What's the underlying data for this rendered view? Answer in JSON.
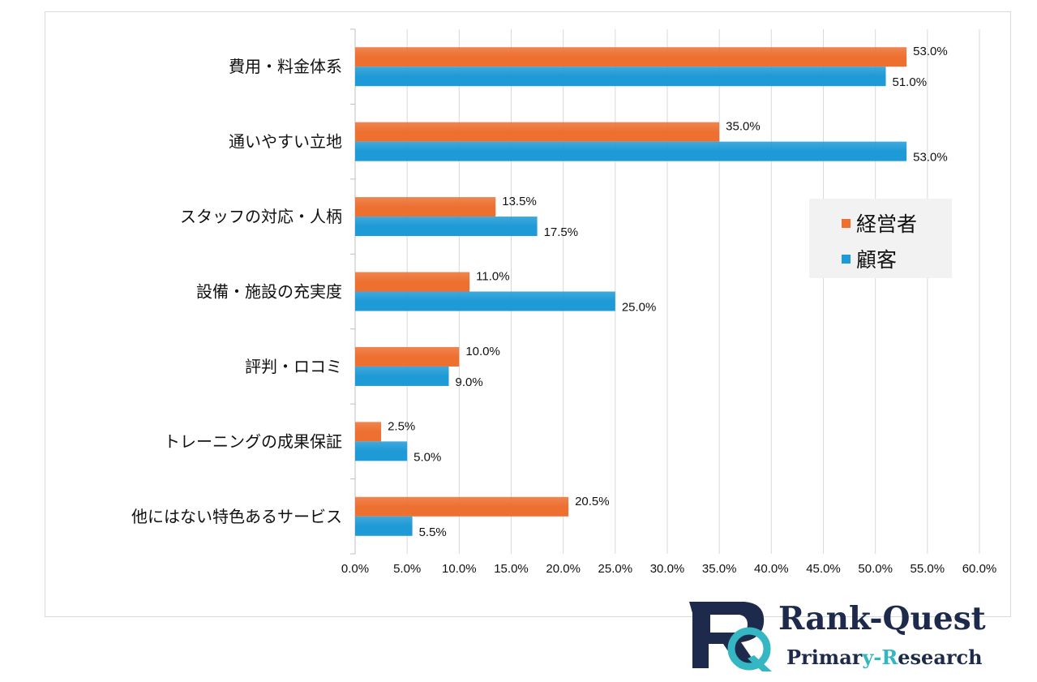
{
  "chart_data": {
    "type": "bar",
    "orientation": "horizontal",
    "categories": [
      "費用・料金体系",
      "通いやすい立地",
      "スタッフの対応・人柄",
      "設備・施設の充実度",
      "評判・ロコミ",
      "トレーニングの成果保証",
      "他にはない特色あるサービス"
    ],
    "series": [
      {
        "name": "経営者",
        "color": "#ed7030",
        "values": [
          53.0,
          35.0,
          13.5,
          11.0,
          10.0,
          2.5,
          20.5
        ],
        "labels": [
          "53.0%",
          "35.0%",
          "13.5%",
          "11.0%",
          "10.0%",
          "2.5%",
          "20.5%"
        ]
      },
      {
        "name": "顧客",
        "color": "#1e9ad6",
        "values": [
          51.0,
          53.0,
          17.5,
          25.0,
          9.0,
          5.0,
          5.5
        ],
        "labels": [
          "51.0%",
          "53.0%",
          "17.5%",
          "25.0%",
          "9.0%",
          "5.0%",
          "5.5%"
        ]
      }
    ],
    "xlim": [
      0,
      60
    ],
    "xticks": [
      "0.0%",
      "5.0%",
      "10.0%",
      "15.0%",
      "20.0%",
      "25.0%",
      "30.0%",
      "35.0%",
      "40.0%",
      "45.0%",
      "50.0%",
      "55.0%",
      "60.0%"
    ],
    "grid": true,
    "legend": "right-middle"
  },
  "legend": {
    "items": [
      {
        "label": "経営者",
        "color": "#ed7030"
      },
      {
        "label": "顧客",
        "color": "#1e9ad6"
      }
    ]
  },
  "branding": {
    "logo_letters": "RQ",
    "name_part1": "Rank-Q",
    "name_part2": "uest",
    "sub_part1": "Primar",
    "sub_part2": "y-",
    "sub_part3": "R",
    "sub_part4": "esearch"
  }
}
